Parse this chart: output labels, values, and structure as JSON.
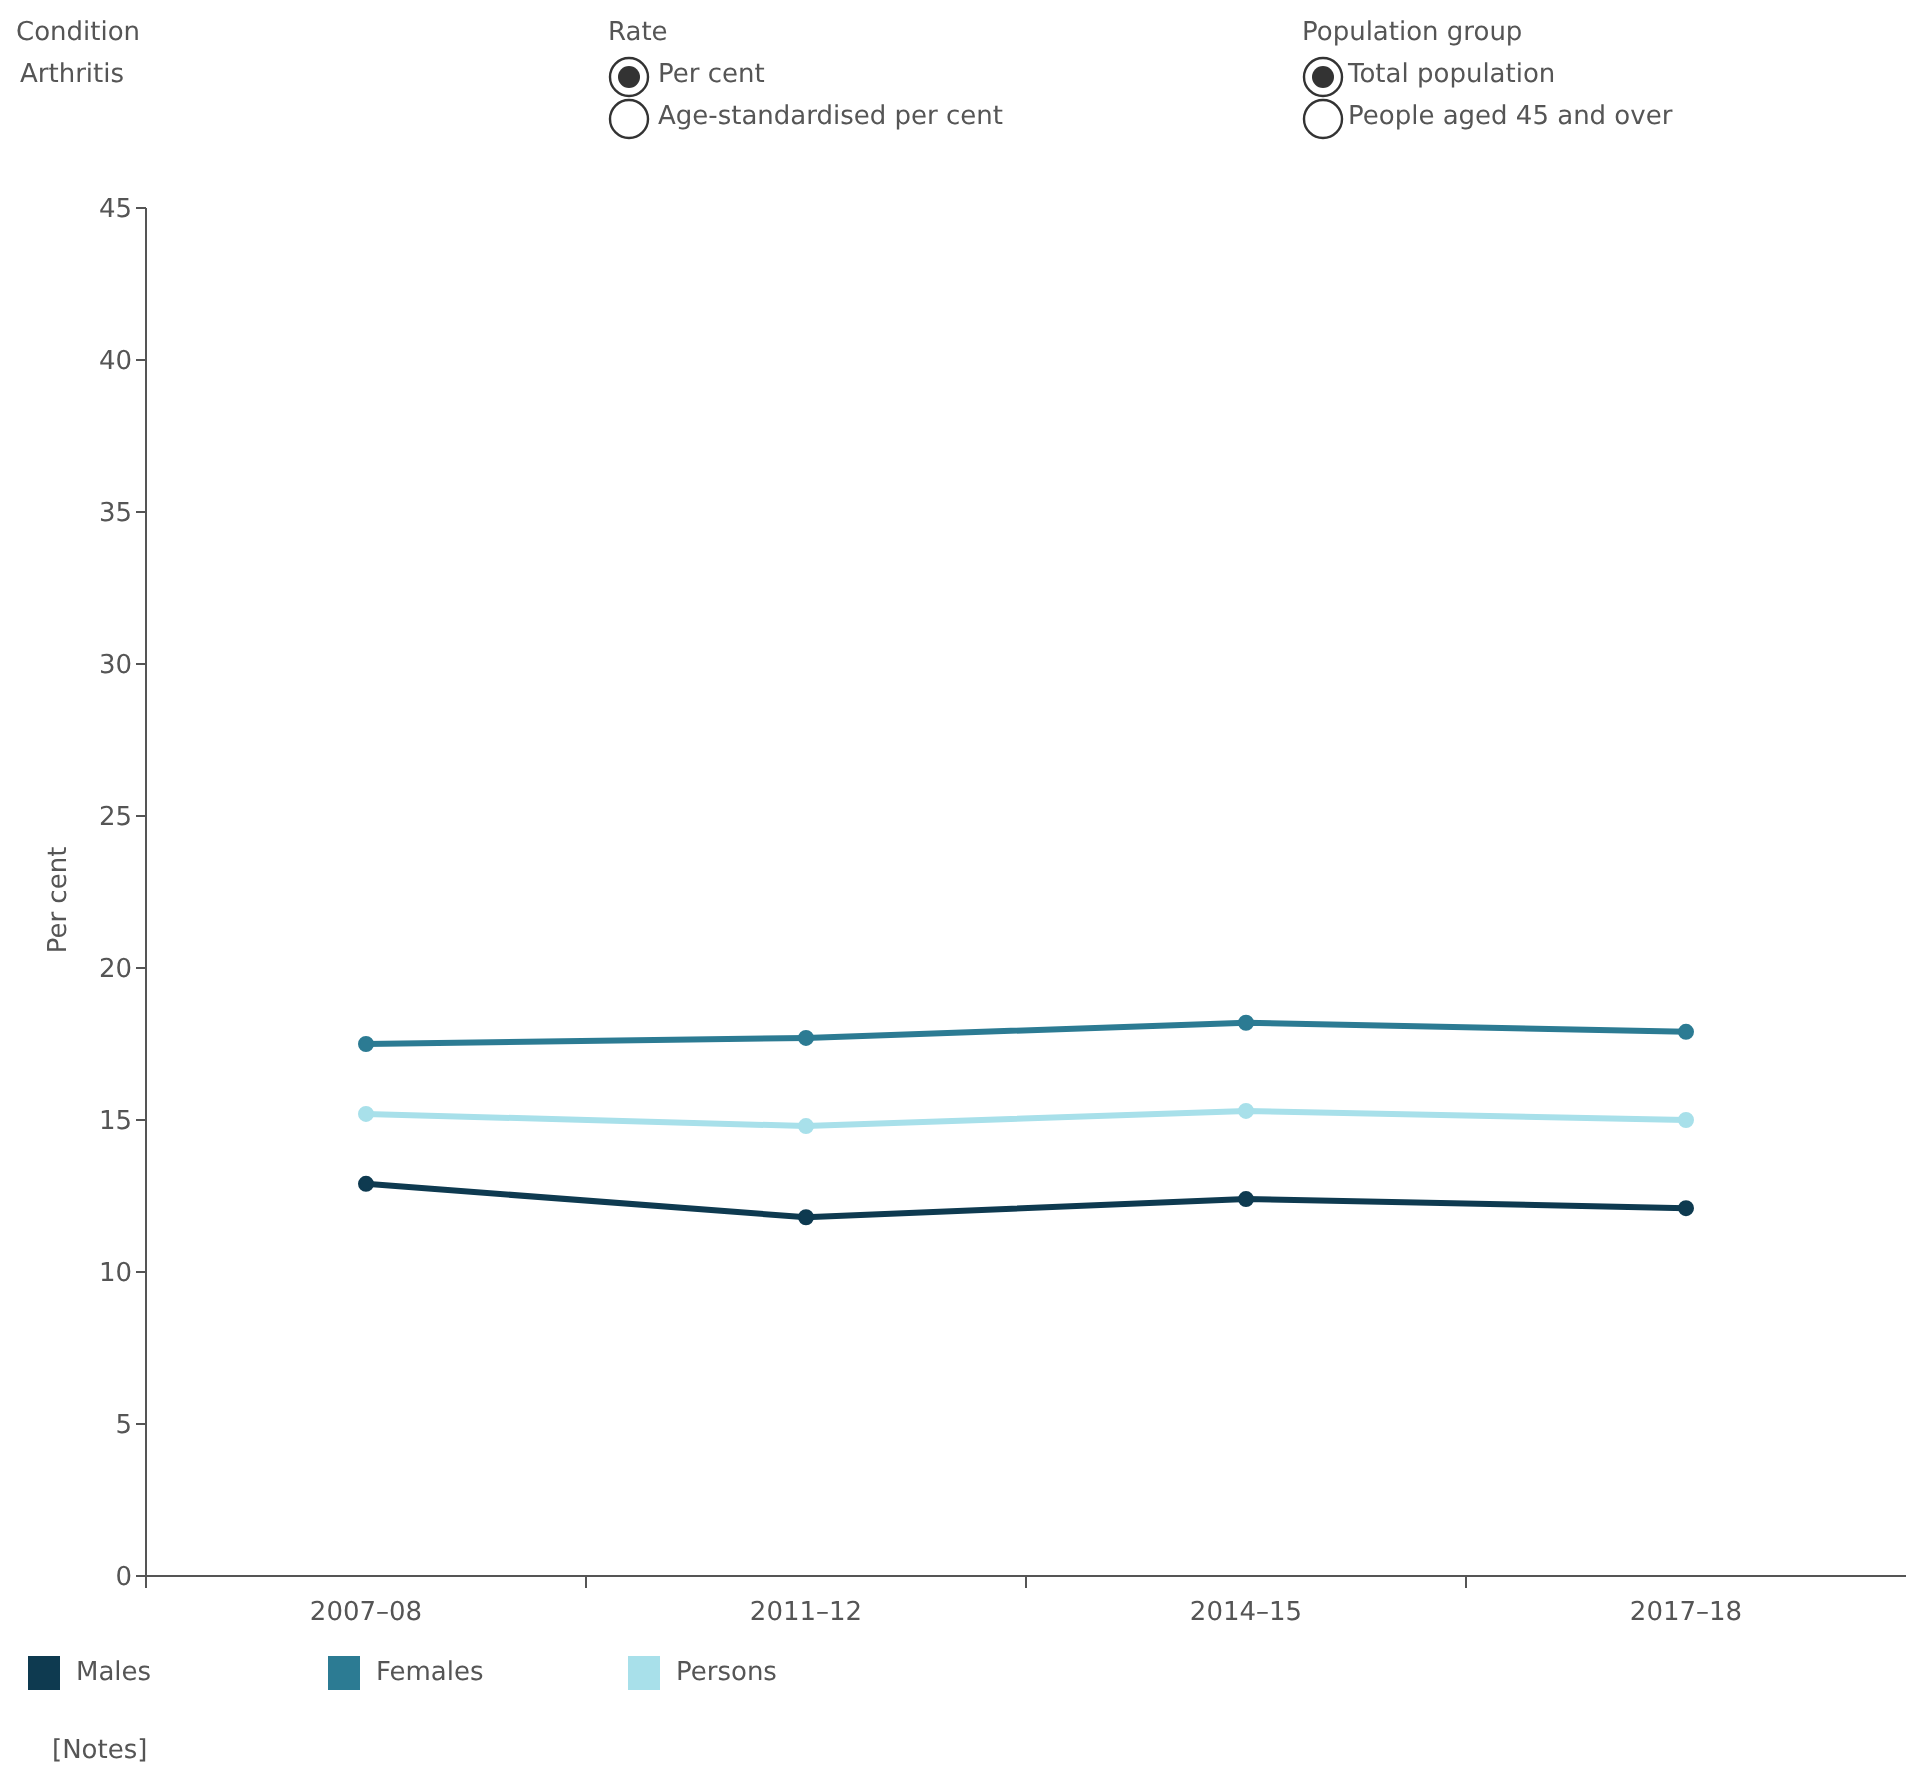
{
  "chart_data": {
    "type": "line",
    "ylabel": "Per cent",
    "categories": [
      "2007–08",
      "2011–12",
      "2014–15",
      "2017–18"
    ],
    "series": [
      {
        "name": "Males",
        "color": "#0e3a50",
        "values": [
          12.9,
          11.8,
          12.4,
          12.1
        ]
      },
      {
        "name": "Females",
        "color": "#2c7b93",
        "values": [
          17.5,
          17.7,
          18.2,
          17.9
        ]
      },
      {
        "name": "Persons",
        "color": "#a8e0ea",
        "values": [
          15.2,
          14.8,
          15.3,
          15.0
        ]
      }
    ],
    "ylim": [
      0,
      45
    ],
    "yticks": [
      0,
      5,
      10,
      15,
      20,
      25,
      30,
      35,
      40,
      45
    ],
    "grid": false,
    "legend": "bottom",
    "marker": "circle",
    "line_style": "solid",
    "annotations": [
      "Condition",
      "Arthritis",
      "Rate",
      "Per cent",
      "Age-standardised per cent",
      "Population group",
      "Total population",
      "People aged 45 and over",
      "[Notes]"
    ]
  }
}
